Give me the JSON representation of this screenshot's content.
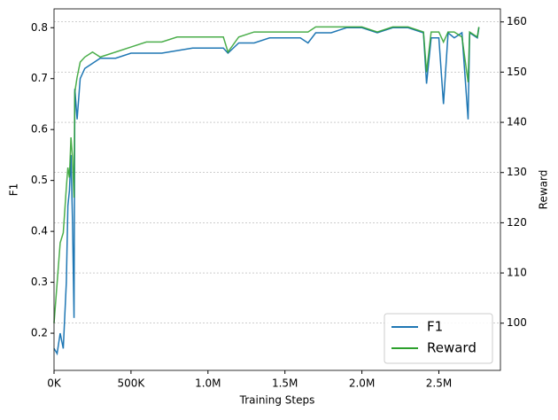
{
  "chart_data": {
    "type": "line",
    "x_label": "Training Steps",
    "y_label": "F1",
    "y2_label": "Reward",
    "x": [
      0,
      20000,
      40000,
      60000,
      80000,
      90000,
      100000,
      110000,
      120000,
      130000,
      135000,
      150000,
      170000,
      200000,
      250000,
      300000,
      400000,
      500000,
      600000,
      700000,
      800000,
      900000,
      1000000,
      1100000,
      1130000,
      1200000,
      1300000,
      1400000,
      1500000,
      1600000,
      1650000,
      1700000,
      1800000,
      1900000,
      2000000,
      2100000,
      2200000,
      2300000,
      2400000,
      2420000,
      2450000,
      2500000,
      2530000,
      2560000,
      2600000,
      2650000,
      2690000,
      2700000,
      2750000,
      2760000
    ],
    "series": [
      {
        "name": "F1",
        "color": "#1f77b4",
        "axis": "y",
        "values": [
          0.17,
          0.16,
          0.2,
          0.17,
          0.3,
          0.45,
          0.48,
          0.55,
          0.42,
          0.23,
          0.68,
          0.62,
          0.7,
          0.72,
          0.73,
          0.74,
          0.74,
          0.75,
          0.75,
          0.75,
          0.755,
          0.76,
          0.76,
          0.76,
          0.75,
          0.77,
          0.77,
          0.78,
          0.78,
          0.78,
          0.77,
          0.79,
          0.79,
          0.8,
          0.8,
          0.79,
          0.8,
          0.8,
          0.79,
          0.69,
          0.78,
          0.78,
          0.65,
          0.79,
          0.78,
          0.79,
          0.62,
          0.79,
          0.78,
          0.8
        ]
      },
      {
        "name": "Reward",
        "color": "#2ca02c",
        "axis": "y2",
        "values": [
          100,
          108,
          116,
          118,
          127,
          131,
          129,
          137,
          133,
          125,
          146,
          149,
          152,
          153,
          154,
          153,
          154,
          155,
          156,
          156,
          157,
          157,
          157,
          157,
          154,
          157,
          158,
          158,
          158,
          158,
          158,
          159,
          159,
          159,
          159,
          158,
          159,
          159,
          158,
          150,
          158,
          158,
          156,
          158,
          158,
          157,
          148,
          158,
          157,
          159
        ]
      }
    ],
    "xlim": [
      0,
      2900000
    ],
    "xticks": [
      {
        "value": 0,
        "label": "0K"
      },
      {
        "value": 500000,
        "label": "500K"
      },
      {
        "value": 1000000,
        "label": "1.0M"
      },
      {
        "value": 1500000,
        "label": "1.5M"
      },
      {
        "value": 2000000,
        "label": "2.0M"
      },
      {
        "value": 2500000,
        "label": "2.5M"
      }
    ],
    "ylim": [
      0.127,
      0.837
    ],
    "yticks": [
      0.2,
      0.3,
      0.4,
      0.5,
      0.6,
      0.7,
      0.8
    ],
    "y2lim": [
      90.6,
      162.6
    ],
    "y2ticks": [
      100,
      110,
      120,
      130,
      140,
      150,
      160
    ],
    "grid": "y2",
    "legend": "lower right"
  }
}
